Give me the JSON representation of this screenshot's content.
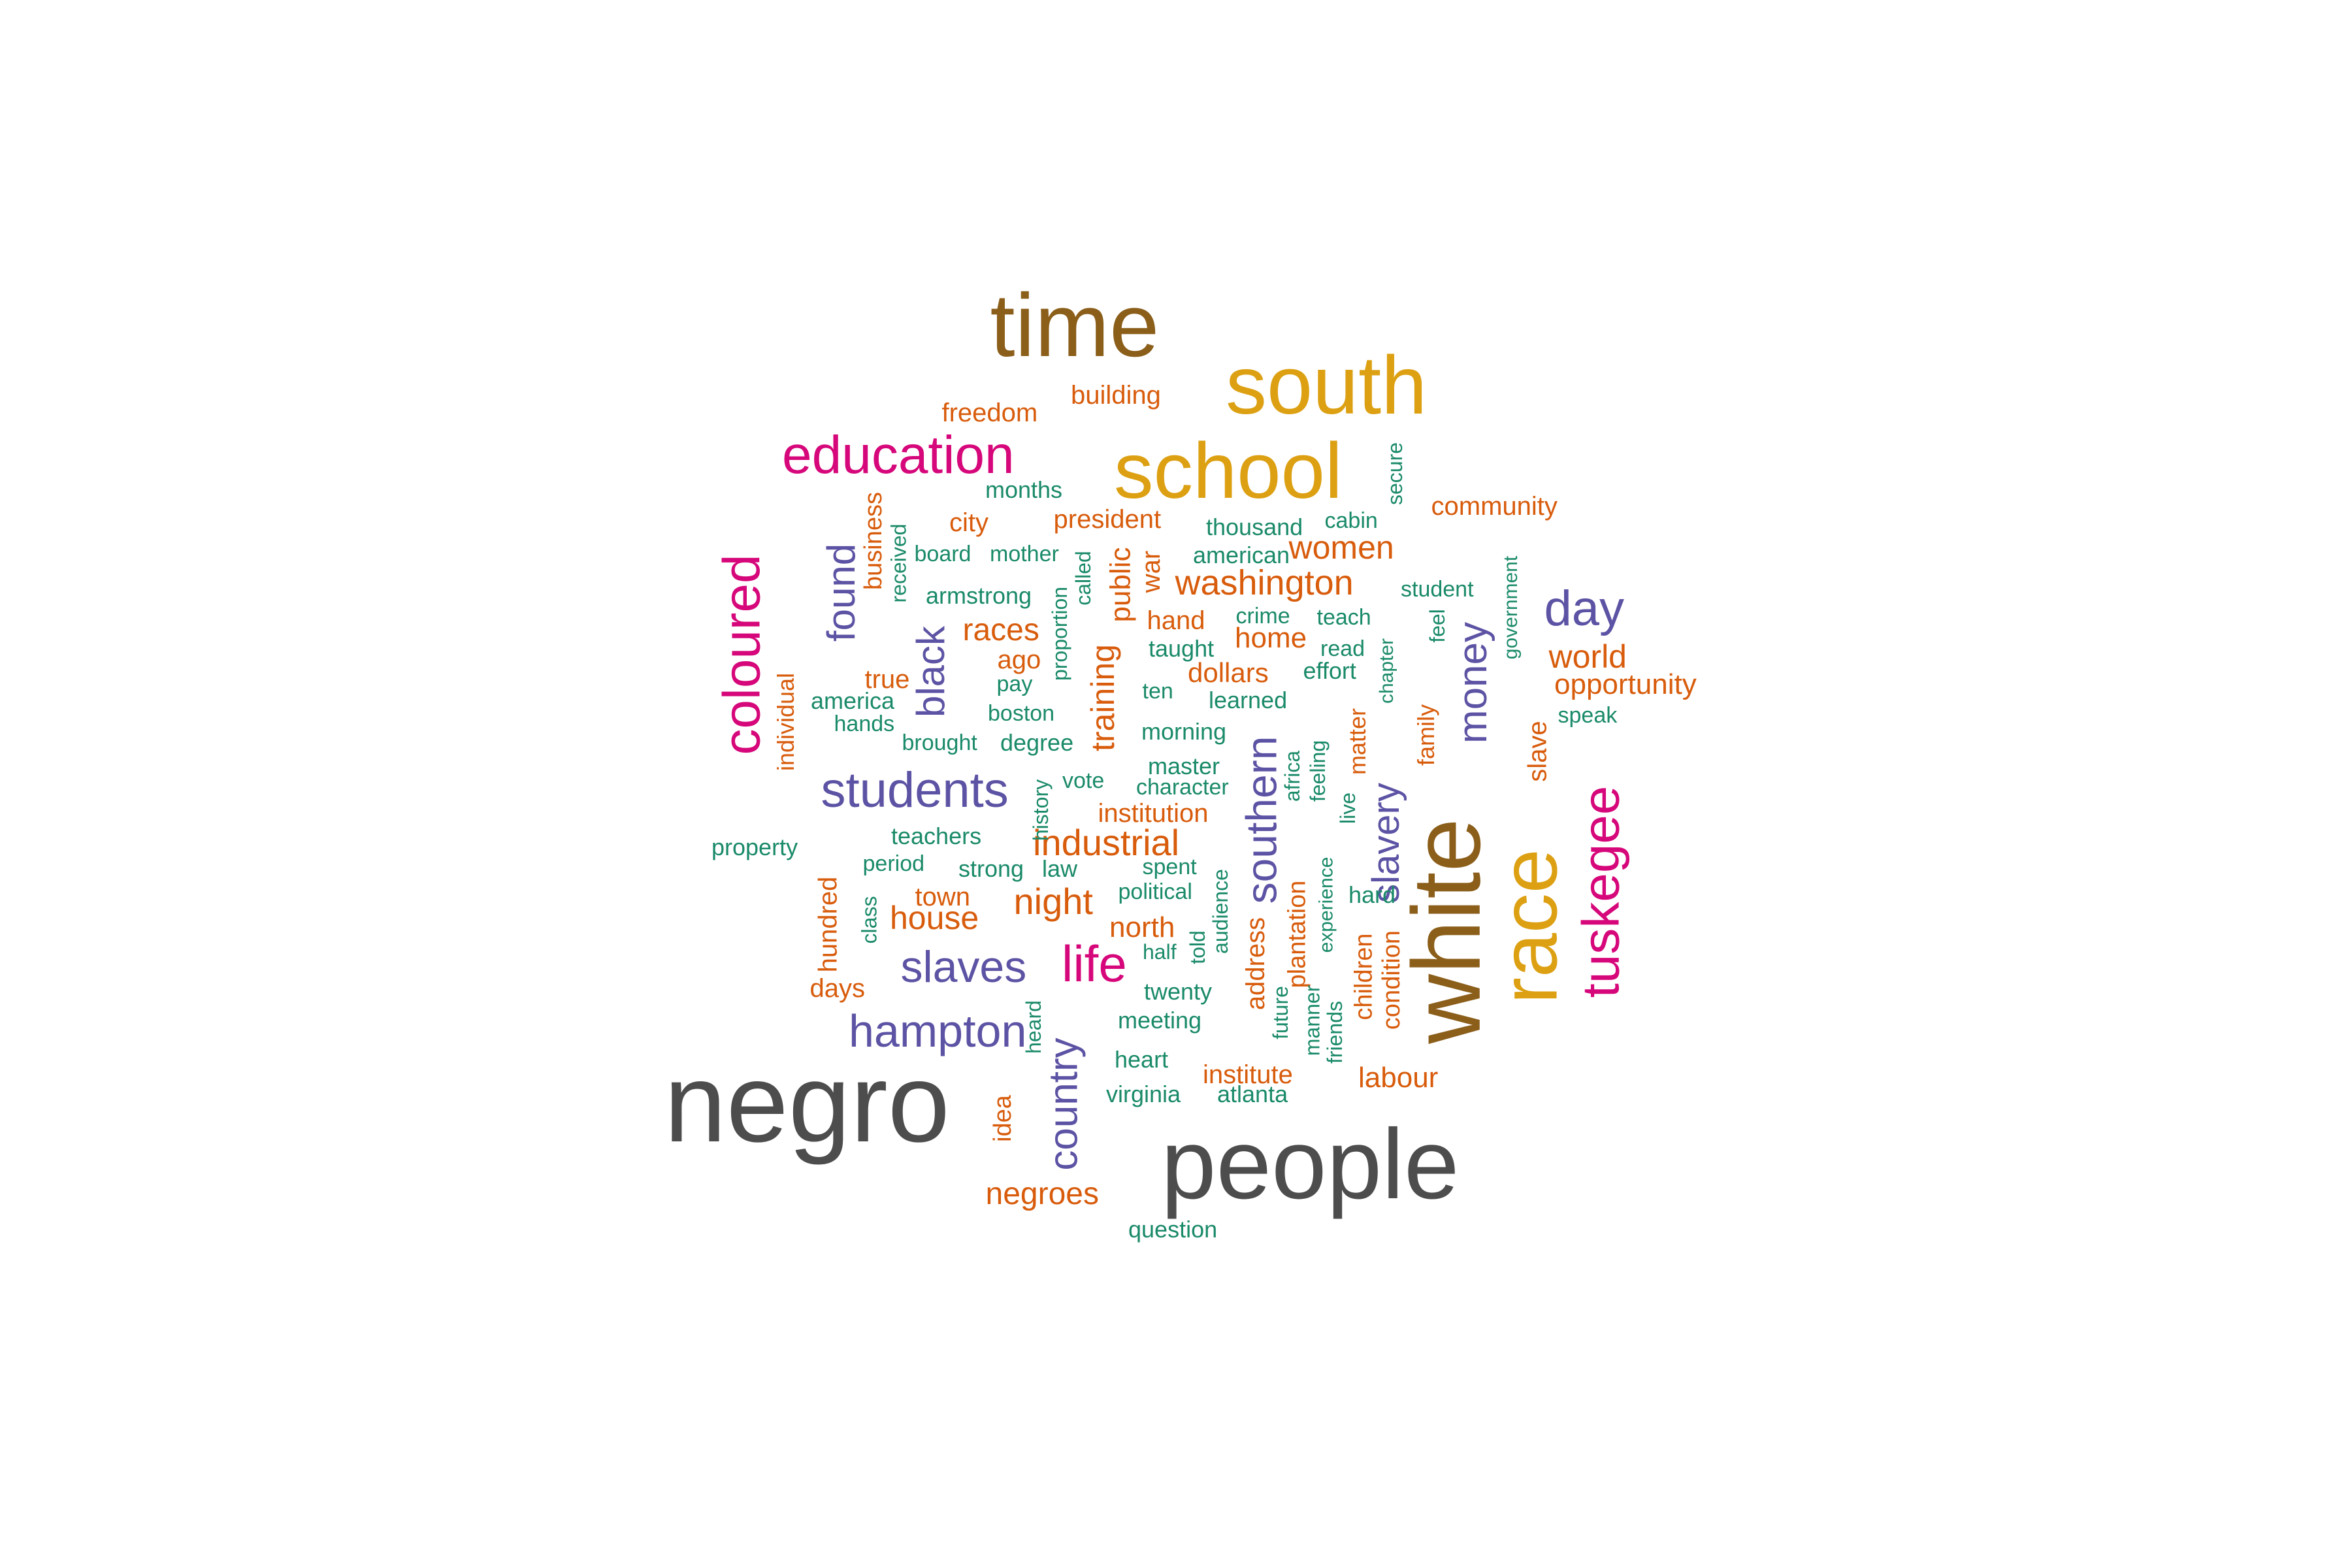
{
  "wordcloud": {
    "palette": {
      "gray": "#4d4d4d",
      "olive": "#8b5e1a",
      "gold": "#dca012",
      "magenta": "#d6077a",
      "purple": "#5c53a4",
      "orange": "#d85c0c",
      "green": "#1a8a69"
    },
    "words": [
      {
        "text": "negro",
        "color": "gray"
      },
      {
        "text": "people",
        "color": "gray"
      },
      {
        "text": "white",
        "color": "olive"
      },
      {
        "text": "time",
        "color": "olive"
      },
      {
        "text": "race",
        "color": "gold"
      },
      {
        "text": "south",
        "color": "gold"
      },
      {
        "text": "school",
        "color": "gold"
      },
      {
        "text": "education",
        "color": "magenta"
      },
      {
        "text": "coloured",
        "color": "magenta"
      },
      {
        "text": "tuskegee",
        "color": "magenta"
      },
      {
        "text": "life",
        "color": "magenta"
      },
      {
        "text": "students",
        "color": "purple"
      },
      {
        "text": "hampton",
        "color": "purple"
      },
      {
        "text": "slaves",
        "color": "purple"
      },
      {
        "text": "day",
        "color": "purple"
      },
      {
        "text": "money",
        "color": "purple"
      },
      {
        "text": "southern",
        "color": "purple"
      },
      {
        "text": "found",
        "color": "purple"
      },
      {
        "text": "black",
        "color": "purple"
      },
      {
        "text": "country",
        "color": "purple"
      },
      {
        "text": "slavery",
        "color": "purple"
      },
      {
        "text": "washington",
        "color": "orange"
      },
      {
        "text": "industrial",
        "color": "orange"
      },
      {
        "text": "night",
        "color": "orange"
      },
      {
        "text": "house",
        "color": "orange"
      },
      {
        "text": "world",
        "color": "orange"
      },
      {
        "text": "women",
        "color": "orange"
      },
      {
        "text": "races",
        "color": "orange"
      },
      {
        "text": "opportunity",
        "color": "orange"
      },
      {
        "text": "negroes",
        "color": "orange"
      },
      {
        "text": "training",
        "color": "orange"
      },
      {
        "text": "labour",
        "color": "orange"
      },
      {
        "text": "north",
        "color": "orange"
      },
      {
        "text": "public",
        "color": "orange"
      },
      {
        "text": "home",
        "color": "orange"
      },
      {
        "text": "dollars",
        "color": "orange"
      },
      {
        "text": "building",
        "color": "orange"
      },
      {
        "text": "freedom",
        "color": "orange"
      },
      {
        "text": "president",
        "color": "orange"
      },
      {
        "text": "community",
        "color": "orange"
      },
      {
        "text": "institution",
        "color": "orange"
      },
      {
        "text": "institute",
        "color": "orange"
      },
      {
        "text": "city",
        "color": "orange"
      },
      {
        "text": "ago",
        "color": "orange"
      },
      {
        "text": "true",
        "color": "orange"
      },
      {
        "text": "town",
        "color": "orange"
      },
      {
        "text": "days",
        "color": "orange"
      },
      {
        "text": "hand",
        "color": "orange"
      },
      {
        "text": "war",
        "color": "orange"
      },
      {
        "text": "business",
        "color": "orange"
      },
      {
        "text": "individual",
        "color": "orange"
      },
      {
        "text": "hundred",
        "color": "orange"
      },
      {
        "text": "idea",
        "color": "orange"
      },
      {
        "text": "slave",
        "color": "orange"
      },
      {
        "text": "family",
        "color": "orange"
      },
      {
        "text": "matter",
        "color": "orange"
      },
      {
        "text": "address",
        "color": "orange"
      },
      {
        "text": "plantation",
        "color": "orange"
      },
      {
        "text": "children",
        "color": "orange"
      },
      {
        "text": "condition",
        "color": "orange"
      },
      {
        "text": "months",
        "color": "green"
      },
      {
        "text": "thousand",
        "color": "green"
      },
      {
        "text": "cabin",
        "color": "green"
      },
      {
        "text": "secure",
        "color": "green"
      },
      {
        "text": "board",
        "color": "green"
      },
      {
        "text": "mother",
        "color": "green"
      },
      {
        "text": "american",
        "color": "green"
      },
      {
        "text": "armstrong",
        "color": "green"
      },
      {
        "text": "student",
        "color": "green"
      },
      {
        "text": "crime",
        "color": "green"
      },
      {
        "text": "teach",
        "color": "green"
      },
      {
        "text": "taught",
        "color": "green"
      },
      {
        "text": "read",
        "color": "green"
      },
      {
        "text": "effort",
        "color": "green"
      },
      {
        "text": "america",
        "color": "green"
      },
      {
        "text": "pay",
        "color": "green"
      },
      {
        "text": "boston",
        "color": "green"
      },
      {
        "text": "ten",
        "color": "green"
      },
      {
        "text": "learned",
        "color": "green"
      },
      {
        "text": "speak",
        "color": "green"
      },
      {
        "text": "hands",
        "color": "green"
      },
      {
        "text": "brought",
        "color": "green"
      },
      {
        "text": "degree",
        "color": "green"
      },
      {
        "text": "morning",
        "color": "green"
      },
      {
        "text": "master",
        "color": "green"
      },
      {
        "text": "vote",
        "color": "green"
      },
      {
        "text": "character",
        "color": "green"
      },
      {
        "text": "property",
        "color": "green"
      },
      {
        "text": "teachers",
        "color": "green"
      },
      {
        "text": "period",
        "color": "green"
      },
      {
        "text": "strong",
        "color": "green"
      },
      {
        "text": "law",
        "color": "green"
      },
      {
        "text": "spent",
        "color": "green"
      },
      {
        "text": "political",
        "color": "green"
      },
      {
        "text": "hard",
        "color": "green"
      },
      {
        "text": "half",
        "color": "green"
      },
      {
        "text": "twenty",
        "color": "green"
      },
      {
        "text": "meeting",
        "color": "green"
      },
      {
        "text": "heart",
        "color": "green"
      },
      {
        "text": "virginia",
        "color": "green"
      },
      {
        "text": "atlanta",
        "color": "green"
      },
      {
        "text": "question",
        "color": "green"
      },
      {
        "text": "received",
        "color": "green"
      },
      {
        "text": "called",
        "color": "green"
      },
      {
        "text": "proportion",
        "color": "green"
      },
      {
        "text": "history",
        "color": "green"
      },
      {
        "text": "class",
        "color": "green"
      },
      {
        "text": "heard",
        "color": "green"
      },
      {
        "text": "audience",
        "color": "green"
      },
      {
        "text": "told",
        "color": "green"
      },
      {
        "text": "africa",
        "color": "green"
      },
      {
        "text": "feeling",
        "color": "green"
      },
      {
        "text": "live",
        "color": "green"
      },
      {
        "text": "experience",
        "color": "green"
      },
      {
        "text": "future",
        "color": "green"
      },
      {
        "text": "manner",
        "color": "green"
      },
      {
        "text": "friends",
        "color": "green"
      },
      {
        "text": "chapter",
        "color": "green"
      },
      {
        "text": "feel",
        "color": "green"
      },
      {
        "text": "government",
        "color": "green"
      }
    ]
  }
}
